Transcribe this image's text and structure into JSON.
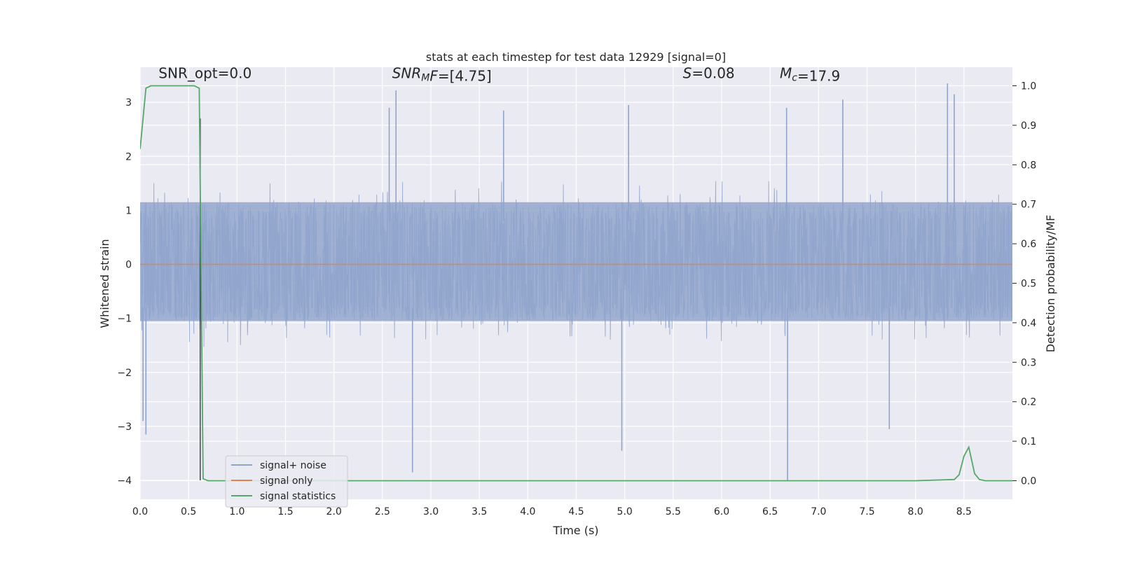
{
  "chart_data": {
    "type": "line",
    "title": "stats at each timestep for test data 12929 [signal=0]",
    "xlabel": "Time (s)",
    "ylabel_left": "Whitened strain",
    "ylabel_right": "Detection probability/MF",
    "xlim": [
      0.0,
      9.0
    ],
    "ylim_left": [
      -4.35,
      3.65
    ],
    "ylim_right": [
      -0.047,
      1.047
    ],
    "x_ticks": [
      0.0,
      0.5,
      1.0,
      1.5,
      2.0,
      2.5,
      3.0,
      3.5,
      4.0,
      4.5,
      5.0,
      5.5,
      6.0,
      6.5,
      7.0,
      7.5,
      8.0,
      8.5
    ],
    "x_tick_labels": [
      "0.0",
      "0.5",
      "1.0",
      "1.5",
      "2.0",
      "2.5",
      "3.0",
      "3.5",
      "4.0",
      "4.5",
      "5.0",
      "5.5",
      "6.0",
      "6.5",
      "7.0",
      "7.5",
      "8.0",
      "8.5"
    ],
    "y_left_ticks": [
      -4,
      -3,
      -2,
      -1,
      0,
      1,
      2,
      3
    ],
    "y_left_tick_labels": [
      "−4",
      "−3",
      "−2",
      "−1",
      "0",
      "1",
      "2",
      "3"
    ],
    "y_right_ticks": [
      0.0,
      0.1,
      0.2,
      0.3,
      0.4,
      0.5,
      0.6,
      0.7,
      0.8,
      0.9,
      1.0
    ],
    "y_right_tick_labels": [
      "0.0",
      "0.1",
      "0.2",
      "0.3",
      "0.4",
      "0.5",
      "0.6",
      "0.7",
      "0.8",
      "0.9",
      "1.0"
    ],
    "grid": true,
    "legend_position": "lower-left",
    "annotations": [
      {
        "id": "snr-opt",
        "parts": [
          {
            "text": "SNR_opt=0.0",
            "italic": false
          }
        ],
        "x": 0.19
      },
      {
        "id": "snr-mf",
        "parts": [
          {
            "text": "SNR",
            "italic": true
          },
          {
            "text": "M",
            "italic": true,
            "sub": true
          },
          {
            "text": "F",
            "italic": true
          },
          {
            "text": "=[4.75]",
            "italic": false
          }
        ],
        "x": 2.6
      },
      {
        "id": "s-stat",
        "parts": [
          {
            "text": "S",
            "italic": true
          },
          {
            "text": "=0.08",
            "italic": false
          }
        ],
        "x": 5.6
      },
      {
        "id": "mc",
        "parts": [
          {
            "text": "M",
            "italic": true
          },
          {
            "text": "c",
            "italic": true,
            "sub": true
          },
          {
            "text": "=17.9",
            "italic": false
          }
        ],
        "x": 6.6
      }
    ],
    "annotation_y_left": 3.45,
    "series": [
      {
        "name": "signal+ noise",
        "axis": "left",
        "color": "#8fa3cc",
        "kind": "noise",
        "x_range": [
          0.0,
          9.0
        ],
        "typical_range": [
          -1.05,
          1.15
        ],
        "peaks": [
          {
            "x": 0.03,
            "y": -2.9
          },
          {
            "x": 0.06,
            "y": -3.15
          },
          {
            "x": 0.62,
            "y": 2.7
          },
          {
            "x": 2.57,
            "y": 2.9
          },
          {
            "x": 2.64,
            "y": 3.22
          },
          {
            "x": 2.81,
            "y": -3.85
          },
          {
            "x": 3.75,
            "y": 2.85
          },
          {
            "x": 4.97,
            "y": -3.45
          },
          {
            "x": 5.04,
            "y": 2.95
          },
          {
            "x": 6.67,
            "y": 2.9
          },
          {
            "x": 6.68,
            "y": -4.0
          },
          {
            "x": 7.25,
            "y": 3.05
          },
          {
            "x": 7.73,
            "y": -3.05
          },
          {
            "x": 8.33,
            "y": 3.35
          },
          {
            "x": 8.4,
            "y": 3.15
          }
        ]
      },
      {
        "name": "signal only",
        "axis": "left",
        "color": "#dd8452",
        "kind": "line",
        "x": [
          0.0,
          9.0
        ],
        "y": [
          0.0,
          0.0
        ]
      },
      {
        "name": "signal statistics",
        "axis": "right",
        "color": "#55a868",
        "kind": "line",
        "x": [
          0.0,
          0.06,
          0.11,
          0.16,
          0.56,
          0.61,
          0.65,
          0.7,
          0.76,
          1.0,
          2.0,
          3.0,
          4.0,
          5.0,
          6.0,
          7.0,
          8.0,
          8.4,
          8.45,
          8.5,
          8.55,
          8.61,
          8.66,
          8.72,
          8.8,
          9.0
        ],
        "y": [
          0.84,
          0.994,
          1.0,
          1.0,
          1.0,
          0.994,
          0.005,
          0.0,
          0.0,
          0.0,
          0.0,
          0.0,
          0.0,
          0.0,
          0.0,
          0.0,
          0.0,
          0.003,
          0.015,
          0.062,
          0.085,
          0.018,
          0.003,
          0.0,
          0.0,
          0.0
        ]
      }
    ],
    "vertical_marker": {
      "x": 0.62,
      "y_from": 2.7,
      "y_to": -4.0,
      "color": "#3a3a3a"
    }
  }
}
